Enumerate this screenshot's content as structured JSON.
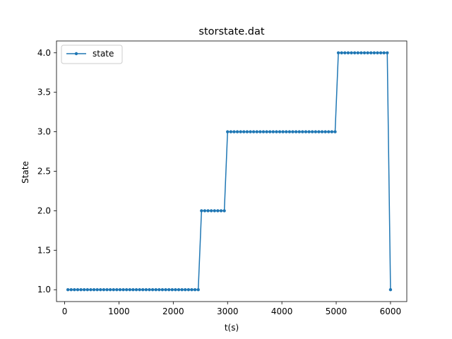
{
  "chart_data": {
    "type": "line",
    "title": "storstate.dat",
    "xlabel": "t(s)",
    "ylabel": "State",
    "xlim": [
      -150,
      6300
    ],
    "ylim": [
      0.85,
      4.15
    ],
    "x_ticks": [
      0,
      1000,
      2000,
      3000,
      4000,
      5000,
      6000
    ],
    "y_ticks": [
      1.0,
      1.5,
      2.0,
      2.5,
      3.0,
      3.5,
      4.0
    ],
    "x_tick_labels": [
      "0",
      "1000",
      "2000",
      "3000",
      "4000",
      "5000",
      "6000"
    ],
    "y_tick_labels": [
      "1.0",
      "1.5",
      "2.0",
      "2.5",
      "3.0",
      "3.5",
      "4.0"
    ],
    "grid": false,
    "legend": {
      "placement": "upper-left",
      "entries": [
        "state"
      ]
    },
    "series": [
      {
        "name": "state",
        "color": "#1f77b4",
        "marker": "circle",
        "x": [
          60,
          120,
          180,
          240,
          300,
          360,
          420,
          480,
          540,
          600,
          660,
          720,
          780,
          840,
          900,
          960,
          1020,
          1080,
          1140,
          1200,
          1260,
          1320,
          1380,
          1440,
          1500,
          1560,
          1620,
          1680,
          1740,
          1800,
          1860,
          1920,
          1980,
          2040,
          2100,
          2160,
          2220,
          2280,
          2340,
          2400,
          2460,
          2520,
          2580,
          2640,
          2700,
          2760,
          2820,
          2880,
          2940,
          3000,
          3060,
          3120,
          3180,
          3240,
          3300,
          3360,
          3420,
          3480,
          3540,
          3600,
          3660,
          3720,
          3780,
          3840,
          3900,
          3960,
          4020,
          4080,
          4140,
          4200,
          4260,
          4320,
          4380,
          4440,
          4500,
          4560,
          4620,
          4680,
          4740,
          4800,
          4860,
          4920,
          4980,
          5040,
          5100,
          5160,
          5220,
          5280,
          5340,
          5400,
          5460,
          5520,
          5580,
          5640,
          5700,
          5760,
          5820,
          5880,
          5940,
          6000
        ],
        "y": [
          1,
          1,
          1,
          1,
          1,
          1,
          1,
          1,
          1,
          1,
          1,
          1,
          1,
          1,
          1,
          1,
          1,
          1,
          1,
          1,
          1,
          1,
          1,
          1,
          1,
          1,
          1,
          1,
          1,
          1,
          1,
          1,
          1,
          1,
          1,
          1,
          1,
          1,
          1,
          1,
          1,
          2,
          2,
          2,
          2,
          2,
          2,
          2,
          2,
          3,
          3,
          3,
          3,
          3,
          3,
          3,
          3,
          3,
          3,
          3,
          3,
          3,
          3,
          3,
          3,
          3,
          3,
          3,
          3,
          3,
          3,
          3,
          3,
          3,
          3,
          3,
          3,
          3,
          3,
          3,
          3,
          3,
          3,
          4,
          4,
          4,
          4,
          4,
          4,
          4,
          4,
          4,
          4,
          4,
          4,
          4,
          4,
          4,
          4,
          1
        ]
      }
    ]
  }
}
